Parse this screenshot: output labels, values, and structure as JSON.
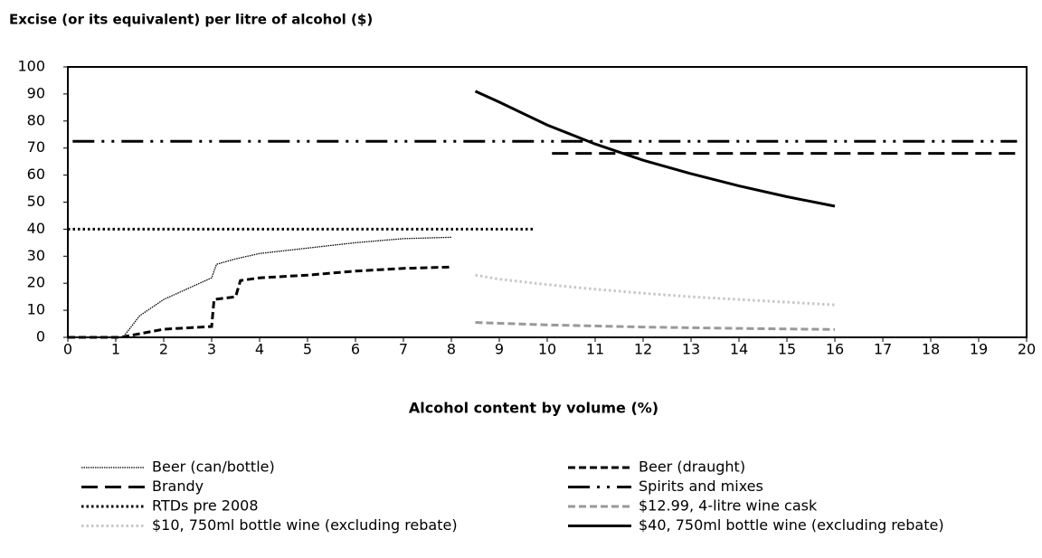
{
  "chart_data": {
    "type": "line",
    "title": "Excise (or its equivalent) per litre of alcohol ($)",
    "xlabel": "Alcohol content by volume (%)",
    "xlim": [
      0,
      20
    ],
    "xticks": [
      0,
      1,
      2,
      3,
      4,
      5,
      6,
      7,
      8,
      9,
      10,
      11,
      12,
      13,
      14,
      15,
      16,
      17,
      18,
      19,
      20
    ],
    "ylim": [
      0,
      100
    ],
    "yticks": [
      0,
      10,
      20,
      30,
      40,
      50,
      60,
      70,
      80,
      90,
      100
    ],
    "grid": false,
    "series": [
      {
        "name": "Beer (can/bottle)",
        "color": "#000000",
        "style": "dotted-thin",
        "x": [
          0,
          1.15,
          1.5,
          2,
          2.5,
          3,
          3.1,
          3.5,
          4,
          5,
          6,
          7,
          8
        ],
        "values": [
          0,
          0,
          8,
          14,
          18,
          22,
          27,
          29,
          31,
          33,
          35,
          36.5,
          37
        ]
      },
      {
        "name": "Beer (draught)",
        "color": "#000000",
        "style": "dashed",
        "x": [
          0,
          1.1,
          2,
          3,
          3.05,
          3.5,
          3.6,
          4,
          5,
          6,
          7,
          8
        ],
        "values": [
          0,
          0,
          3,
          4,
          14,
          15,
          21,
          22,
          23,
          24.5,
          25.5,
          26
        ]
      },
      {
        "name": "Brandy",
        "color": "#000000",
        "style": "long-dashed",
        "x": [
          10.1,
          19.8
        ],
        "values": [
          68,
          68
        ]
      },
      {
        "name": "Spirits and mixes",
        "color": "#000000",
        "style": "dash-dot-dot",
        "x": [
          0.1,
          19.8
        ],
        "values": [
          72.5,
          72.5
        ]
      },
      {
        "name": "RTDs pre 2008",
        "color": "#000000",
        "style": "dotted",
        "x": [
          0,
          9.7
        ],
        "values": [
          40,
          40
        ]
      },
      {
        "name": "$12.99, 4-litre wine cask",
        "color": "#999999",
        "style": "dashed",
        "x": [
          8.5,
          10,
          12,
          14,
          16
        ],
        "values": [
          5.5,
          4.6,
          3.8,
          3.3,
          2.9
        ]
      },
      {
        "name": "$10, 750ml bottle wine (excluding rebate)",
        "color": "#c8c8c8",
        "style": "dotted",
        "x": [
          8.5,
          9,
          10,
          11,
          12,
          13,
          14,
          15,
          16
        ],
        "values": [
          23,
          21.5,
          19.5,
          17.8,
          16.3,
          15,
          14,
          13,
          12
        ]
      },
      {
        "name": "$40, 750ml bottle wine (excluding rebate)",
        "color": "#000000",
        "style": "solid",
        "x": [
          8.5,
          9,
          10,
          11,
          12,
          13,
          14,
          15,
          16
        ],
        "values": [
          91,
          87,
          78.5,
          71.5,
          65.5,
          60.5,
          56,
          52,
          48.5
        ]
      }
    ]
  }
}
